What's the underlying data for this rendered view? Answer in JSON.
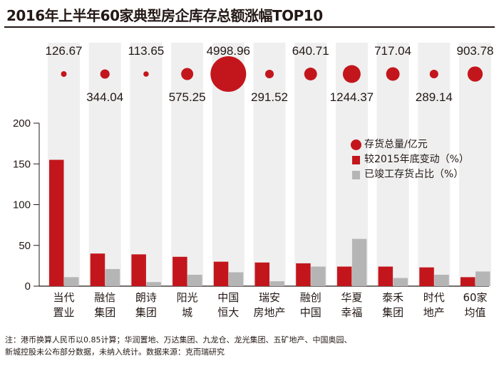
{
  "title": "2016年上半年60家典型房企库存总额涨幅TOP10",
  "note_line1": "注：港币换算人民币以0.85计算；华润置地、万达集团、九龙仓、龙光集团、五矿地产、中国奥园、",
  "note_line2": "新城控股未公布部分数据，未纳入统计。数据来源：克而瑞研究",
  "legend": {
    "inventory": "存货总量/亿元",
    "change": "较2015年底变动（%）",
    "completed": "已竣工存货占比（%）"
  },
  "colors": {
    "red": "#c3161c",
    "gray": "#b5b5b6",
    "column_bg": "#efefef",
    "text": "#231815"
  },
  "chart_data": {
    "type": "bar",
    "title": "2016年上半年60家典型房企库存总额涨幅TOP10",
    "categories": [
      [
        "当代",
        "置业"
      ],
      [
        "融信",
        "集团"
      ],
      [
        "朗诗",
        "集团"
      ],
      [
        "阳光",
        "城"
      ],
      [
        "中国",
        "恒大"
      ],
      [
        "瑞安",
        "房地产"
      ],
      [
        "融创",
        "中国"
      ],
      [
        "华夏",
        "幸福"
      ],
      [
        "泰禾",
        "集团"
      ],
      [
        "时代",
        "地产"
      ],
      [
        "60家",
        "均值"
      ]
    ],
    "inventory": [
      126.67,
      344.04,
      113.65,
      575.25,
      4998.96,
      291.52,
      640.71,
      1244.37,
      717.04,
      289.14,
      903.78
    ],
    "inventory_labels": [
      "126.67",
      "344.04",
      "113.65",
      "575.25",
      "4998.96",
      "291.52",
      "640.71",
      "1244.37",
      "717.04",
      "289.14",
      "903.78"
    ],
    "series": [
      {
        "name": "较2015年底变动（%）",
        "values": [
          155,
          40,
          39,
          36,
          30,
          29,
          28,
          24,
          24,
          23,
          11
        ]
      },
      {
        "name": "已竣工存货占比（%）",
        "values": [
          11,
          21,
          5,
          14,
          17,
          6,
          24,
          58,
          10,
          14,
          18
        ]
      }
    ],
    "y_ticks": [
      0,
      50,
      100,
      150,
      200
    ],
    "ylim": [
      0,
      200
    ],
    "xlabel": "",
    "ylabel": ""
  }
}
